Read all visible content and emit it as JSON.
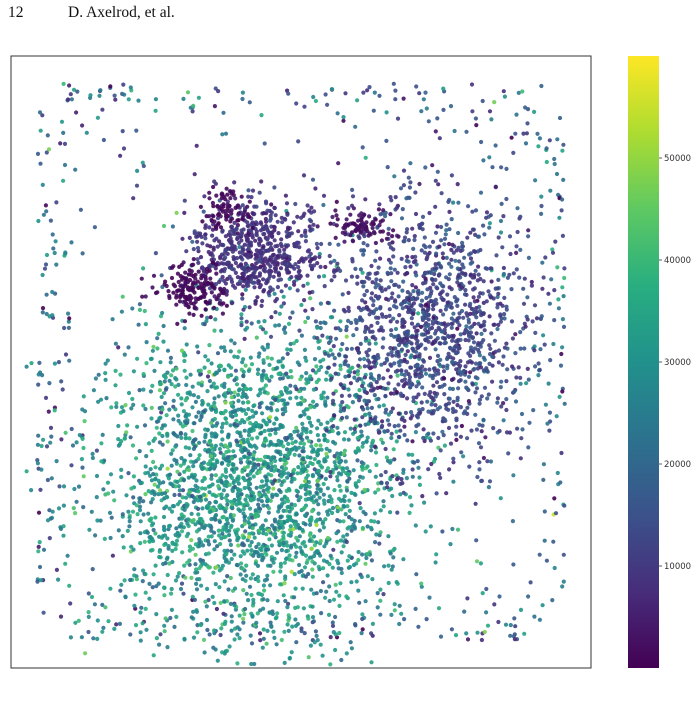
{
  "header": {
    "page_number": "12",
    "authors": "D. Axelrod, et al."
  },
  "chart_data": {
    "type": "scatter",
    "title": "",
    "xlabel": "",
    "ylabel": "",
    "colormap": "viridis",
    "colorbar": {
      "range": [
        0,
        60000
      ],
      "ticks": [
        10000,
        20000,
        30000,
        40000,
        50000
      ],
      "tick_labels": [
        "10000",
        "20000",
        "30000",
        "40000",
        "50000"
      ]
    },
    "xlim": [
      0,
      1
    ],
    "ylim": [
      0,
      1
    ],
    "grid": false,
    "axes_ticks_visible": false,
    "clusters": [
      {
        "center": [
          0.42,
          0.31
        ],
        "spread": [
          0.13,
          0.13
        ],
        "count": 2600,
        "value_mean": 31000,
        "value_sd": 7000
      },
      {
        "center": [
          0.72,
          0.55
        ],
        "spread": [
          0.085,
          0.11
        ],
        "count": 1300,
        "value_mean": 12500,
        "value_sd": 4000
      },
      {
        "center": [
          0.42,
          0.68
        ],
        "spread": [
          0.055,
          0.045
        ],
        "count": 650,
        "value_mean": 8500,
        "value_sd": 2500
      },
      {
        "center": [
          0.31,
          0.62
        ],
        "spread": [
          0.028,
          0.022
        ],
        "count": 160,
        "value_mean": 1500,
        "value_sd": 800
      },
      {
        "center": [
          0.37,
          0.75
        ],
        "spread": [
          0.018,
          0.016
        ],
        "count": 70,
        "value_mean": 1500,
        "value_sd": 700
      },
      {
        "center": [
          0.6,
          0.72
        ],
        "spread": [
          0.025,
          0.012
        ],
        "count": 90,
        "value_mean": 2500,
        "value_sd": 900
      }
    ],
    "outer_frame_points": {
      "count": 420,
      "value_mean": 20000,
      "value_sd": 10000
    }
  }
}
